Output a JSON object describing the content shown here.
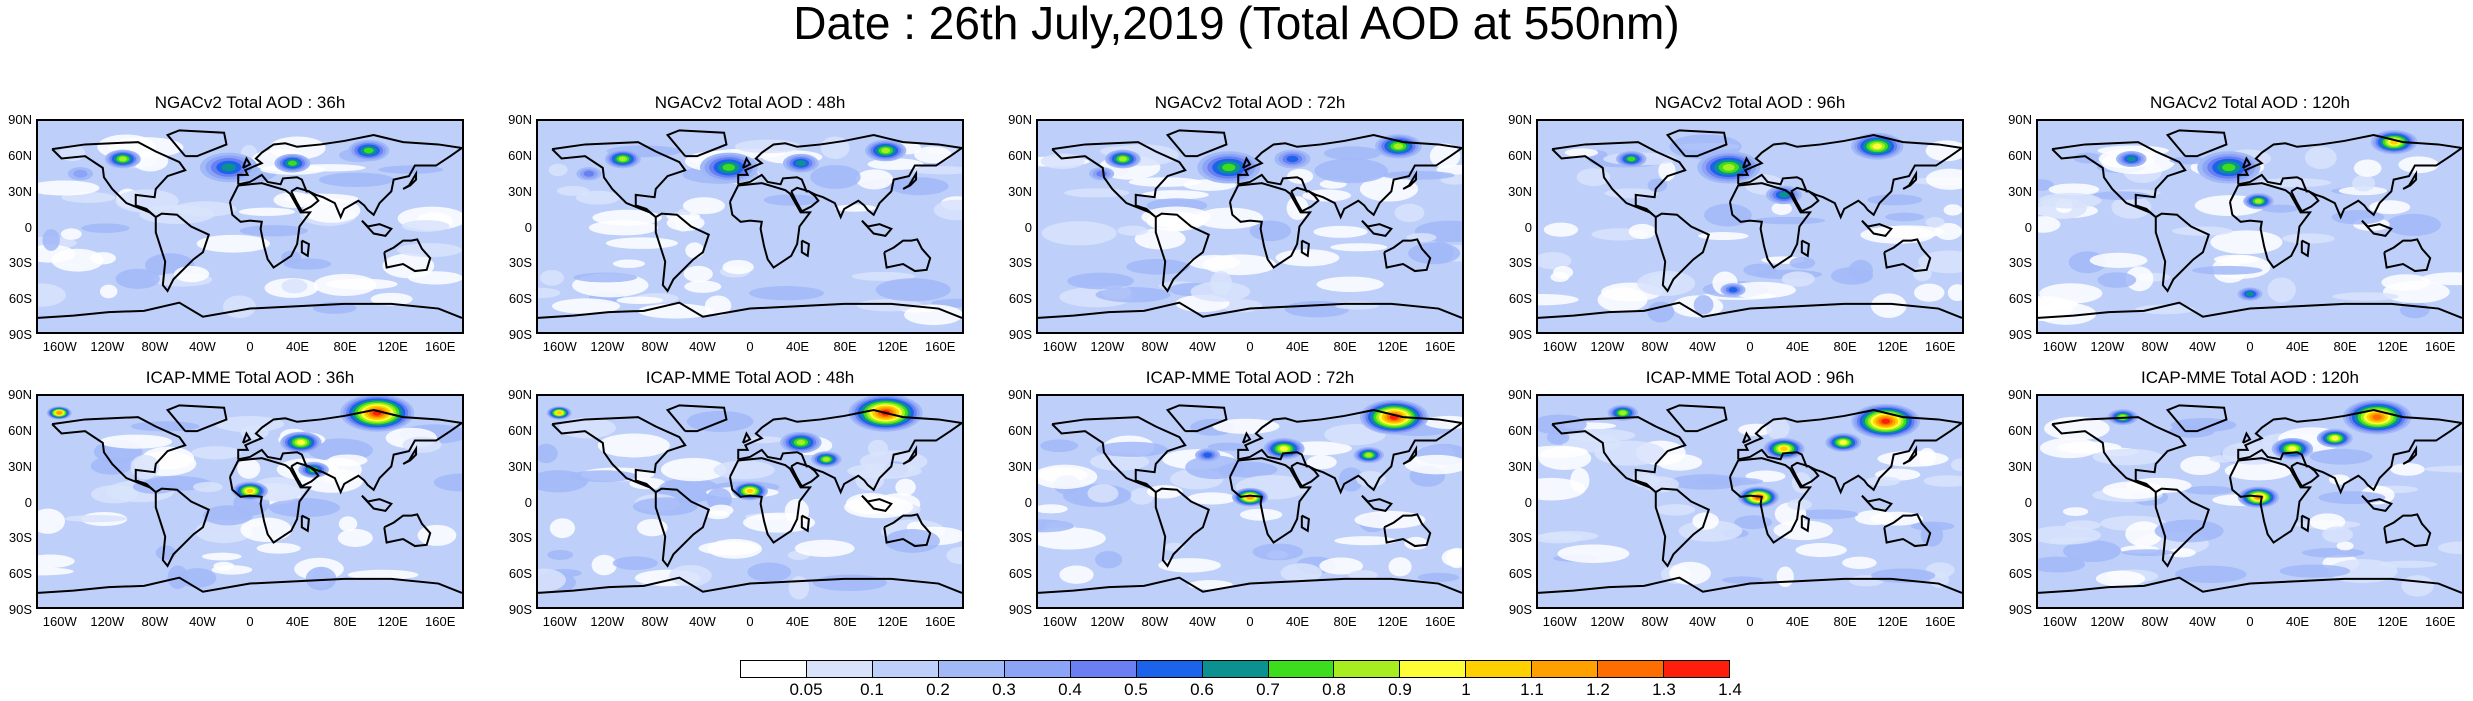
{
  "title": "Date : 26th July,2019 (Total AOD at 550nm)",
  "rows": [
    {
      "model": "NGACv2",
      "panels": [
        {
          "title": "NGACv2 Total AOD : 36h",
          "hotspots": [
            [
              20,
              18,
              12,
              0.9
            ],
            [
              45,
              22,
              20,
              0.7
            ],
            [
              60,
              20,
              12,
              0.8
            ],
            [
              78,
              14,
              14,
              0.8
            ],
            [
              10,
              25,
              8,
              0.4
            ]
          ]
        },
        {
          "title": "NGACv2 Total AOD : 48h",
          "hotspots": [
            [
              20,
              18,
              12,
              0.9
            ],
            [
              45,
              22,
              20,
              0.8
            ],
            [
              62,
              20,
              12,
              0.7
            ],
            [
              82,
              14,
              14,
              0.9
            ],
            [
              12,
              25,
              8,
              0.5
            ]
          ]
        },
        {
          "title": "NGACv2 Total AOD : 72h",
          "hotspots": [
            [
              20,
              18,
              12,
              0.9
            ],
            [
              45,
              22,
              22,
              0.8
            ],
            [
              60,
              18,
              12,
              0.6
            ],
            [
              85,
              12,
              16,
              0.9
            ],
            [
              15,
              25,
              8,
              0.5
            ]
          ]
        },
        {
          "title": "NGACv2 Total AOD : 96h",
          "hotspots": [
            [
              22,
              18,
              10,
              0.8
            ],
            [
              45,
              22,
              22,
              0.9
            ],
            [
              58,
              35,
              12,
              0.7
            ],
            [
              80,
              12,
              18,
              1.0
            ],
            [
              46,
              80,
              8,
              0.6
            ]
          ]
        },
        {
          "title": "NGACv2 Total AOD : 120h",
          "hotspots": [
            [
              22,
              18,
              10,
              0.7
            ],
            [
              45,
              22,
              22,
              0.8
            ],
            [
              52,
              38,
              10,
              0.9
            ],
            [
              84,
              10,
              16,
              1.1
            ],
            [
              50,
              82,
              8,
              0.7
            ]
          ]
        }
      ]
    },
    {
      "model": "ICAP-MME",
      "panels": [
        {
          "title": "ICAP-MME Total AOD : 36h",
          "hotspots": [
            [
              80,
              8,
              26,
              1.4
            ],
            [
              62,
              22,
              14,
              1.0
            ],
            [
              50,
              45,
              12,
              1.1
            ],
            [
              65,
              35,
              10,
              0.8
            ],
            [
              5,
              8,
              8,
              1.2
            ]
          ]
        },
        {
          "title": "ICAP-MME Total AOD : 48h",
          "hotspots": [
            [
              82,
              8,
              26,
              1.4
            ],
            [
              62,
              22,
              14,
              0.9
            ],
            [
              50,
              45,
              12,
              1.1
            ],
            [
              68,
              30,
              10,
              0.9
            ],
            [
              5,
              8,
              8,
              1.1
            ]
          ]
        },
        {
          "title": "ICAP-MME Total AOD : 72h",
          "hotspots": [
            [
              84,
              10,
              24,
              1.4
            ],
            [
              58,
              25,
              14,
              1.0
            ],
            [
              50,
              48,
              12,
              1.2
            ],
            [
              78,
              28,
              10,
              0.9
            ],
            [
              40,
              28,
              8,
              0.6
            ]
          ]
        },
        {
          "title": "ICAP-MME Total AOD : 96h",
          "hotspots": [
            [
              82,
              12,
              24,
              1.4
            ],
            [
              58,
              25,
              14,
              1.1
            ],
            [
              52,
              48,
              14,
              1.3
            ],
            [
              72,
              22,
              12,
              1.0
            ],
            [
              20,
              8,
              10,
              0.9
            ]
          ]
        },
        {
          "title": "ICAP-MME Total AOD : 120h",
          "hotspots": [
            [
              80,
              10,
              24,
              1.3
            ],
            [
              60,
              25,
              14,
              1.0
            ],
            [
              52,
              48,
              14,
              1.2
            ],
            [
              70,
              20,
              12,
              1.0
            ],
            [
              20,
              10,
              10,
              0.9
            ]
          ]
        }
      ]
    }
  ],
  "lat_labels": [
    "90N",
    "60N",
    "30N",
    "0",
    "30S",
    "60S",
    "90S"
  ],
  "lon_labels": [
    "160W",
    "120W",
    "80W",
    "40W",
    "0",
    "40E",
    "80E",
    "120E",
    "160E"
  ],
  "lon_values": [
    -160,
    -120,
    -80,
    -40,
    0,
    40,
    80,
    120,
    160
  ],
  "colorbar": {
    "ticks": [
      "0.05",
      "0.1",
      "0.2",
      "0.3",
      "0.4",
      "0.5",
      "0.6",
      "0.7",
      "0.8",
      "0.9",
      "1",
      "1.1",
      "1.2",
      "1.3",
      "1.4"
    ],
    "colors": [
      "#ffffff",
      "#d8e3fb",
      "#bed0fa",
      "#a2b9f8",
      "#8ba4f6",
      "#6a7ff2",
      "#1b63ea",
      "#0c9191",
      "#3cdd1c",
      "#a6ee1f",
      "#fefe36",
      "#fed000",
      "#fea100",
      "#fd6d00",
      "#fd1f0b"
    ]
  }
}
